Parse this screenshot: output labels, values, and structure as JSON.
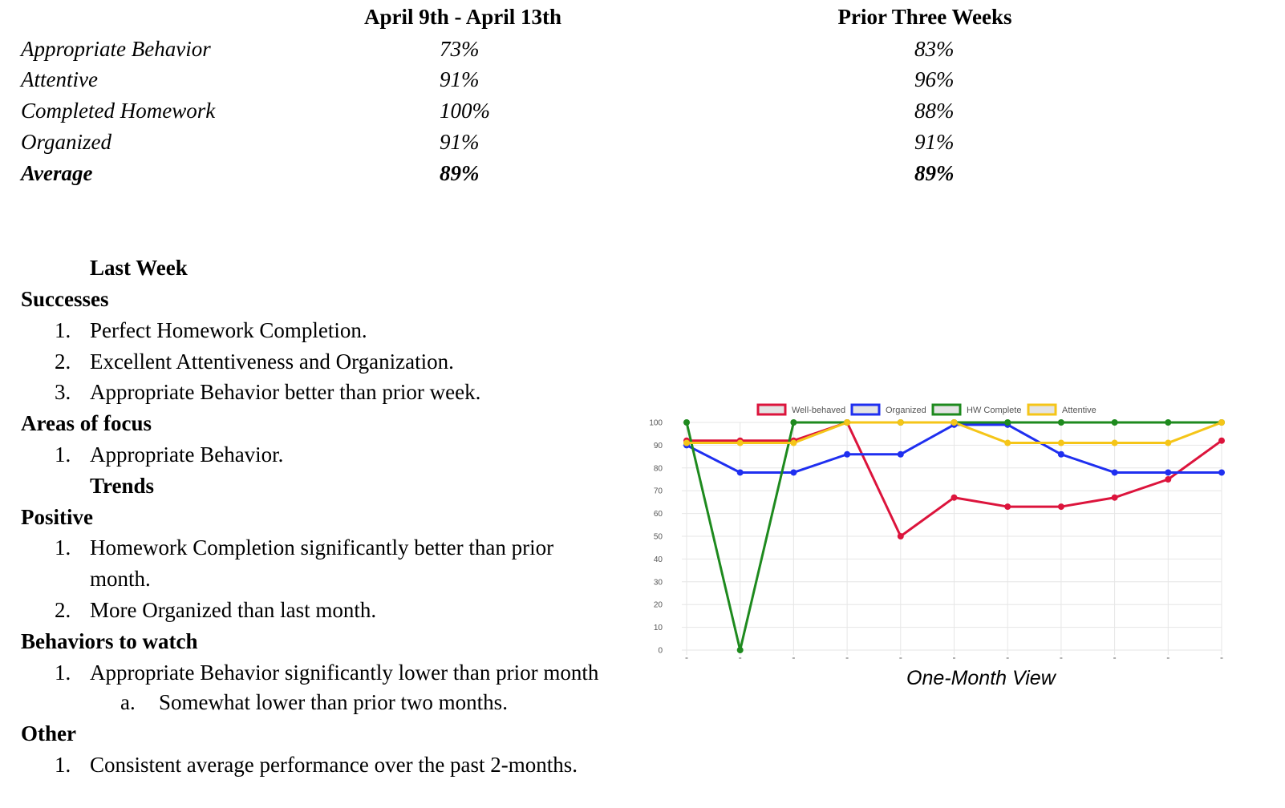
{
  "summary": {
    "col1_header": "April 9th - April 13th",
    "col2_header": "Prior Three Weeks",
    "rows": [
      {
        "label": "Appropriate Behavior",
        "current": "73%",
        "prior": "83%"
      },
      {
        "label": "Attentive",
        "current": "91%",
        "prior": "96%"
      },
      {
        "label": "Completed Homework",
        "current": "100%",
        "prior": "88%"
      },
      {
        "label": "Organized",
        "current": "91%",
        "prior": "91%"
      },
      {
        "label": "Average",
        "current": "89%",
        "prior": "89%"
      }
    ]
  },
  "notes": {
    "last_week": "Last Week",
    "successes": {
      "heading": "Successes",
      "items": [
        "Perfect Homework Completion.",
        "Excellent Attentiveness and Organization.",
        "Appropriate Behavior better than prior week."
      ]
    },
    "areas_of_focus": {
      "heading": "Areas of focus",
      "items": [
        "Appropriate Behavior."
      ]
    },
    "trends": "Trends",
    "positive": {
      "heading": "Positive",
      "items": [
        "Homework Completion significantly better than prior",
        "month.",
        "More Organized than last month."
      ]
    },
    "behaviors": {
      "heading": "Behaviors to watch",
      "items": [
        "Appropriate Behavior significantly lower than prior month"
      ],
      "sub_items": [
        "Somewhat lower than prior two months."
      ]
    },
    "other": {
      "heading": "Other",
      "items": [
        "Consistent average performance over the past 2-months."
      ]
    },
    "markers": {
      "n1": "1.",
      "n2": "2.",
      "n3": "3.",
      "a": "a."
    }
  },
  "chart_data": {
    "type": "line",
    "caption": "One-Month View",
    "ylim": [
      0,
      100
    ],
    "y_ticks": [
      0,
      10,
      20,
      30,
      40,
      50,
      60,
      70,
      80,
      90,
      100
    ],
    "x_count": 11,
    "grid": true,
    "legend_position": "top",
    "series": [
      {
        "name": "Well-behaved",
        "color": "#dc143c",
        "values": [
          92,
          92,
          92,
          100,
          50,
          67,
          63,
          63,
          67,
          75,
          92
        ]
      },
      {
        "name": "Organized",
        "color": "#1f2ff0",
        "values": [
          90,
          78,
          78,
          86,
          86,
          99,
          99,
          86,
          78,
          78,
          78
        ]
      },
      {
        "name": "HW Complete",
        "color": "#1e8a1e",
        "values": [
          100,
          0,
          100,
          100,
          100,
          100,
          100,
          100,
          100,
          100,
          100
        ]
      },
      {
        "name": "Attentive",
        "color": "#f5c518",
        "values": [
          91,
          91,
          91,
          100,
          100,
          100,
          91,
          91,
          91,
          91,
          100
        ]
      }
    ]
  }
}
